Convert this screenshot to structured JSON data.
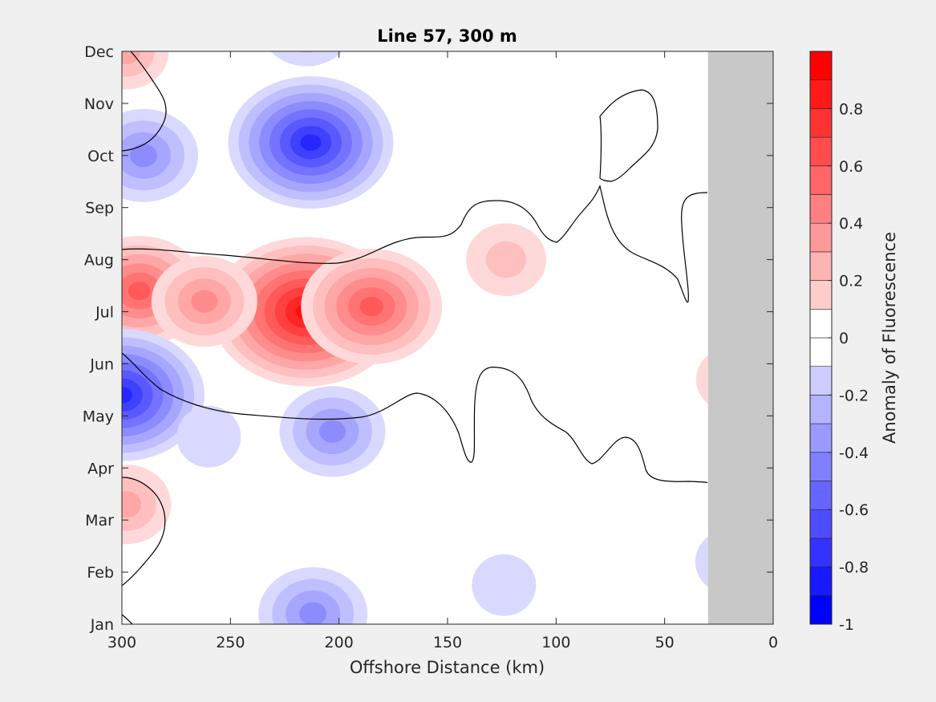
{
  "chart_data": {
    "type": "heatmap",
    "title": "Line 57, 300 m",
    "xlabel": "Offshore Distance (km)",
    "ylabel": "",
    "xlim": [
      300,
      0
    ],
    "x_reversed": true,
    "x_ticks": [
      300,
      250,
      200,
      150,
      100,
      50,
      0
    ],
    "y_ticks": [
      "Jan",
      "Feb",
      "Mar",
      "Apr",
      "May",
      "Jun",
      "Jul",
      "Aug",
      "Sep",
      "Oct",
      "Nov",
      "Dec"
    ],
    "colorbar": {
      "label": "Anomaly of Fluorescence",
      "range": [
        -1,
        1
      ],
      "tick_labels": [
        "0.8",
        "0.6",
        "0.4",
        "0.2",
        "0",
        "-0.2",
        "-0.4",
        "-0.6",
        "-0.8",
        "-1"
      ],
      "tick_values": [
        0.8,
        0.6,
        0.4,
        0.2,
        0,
        -0.2,
        -0.4,
        -0.6,
        -0.8,
        -1
      ],
      "levels": [
        -1,
        -0.9,
        -0.8,
        -0.7,
        -0.6,
        -0.5,
        -0.4,
        -0.3,
        -0.2,
        -0.1,
        0,
        0.1,
        0.2,
        0.3,
        0.4,
        0.5,
        0.6,
        0.7,
        0.8,
        0.9,
        1
      ],
      "colormap": "blue-white-red"
    },
    "no_data_region_km": [
      0,
      30
    ],
    "no_data_color": "#c8c8c8",
    "zero_contour_color": "#000000",
    "anomaly_features": [
      {
        "name": "summer positive anomaly",
        "distance_km": 215,
        "month": 6.0,
        "peak": 0.9
      },
      {
        "name": "summer positive anomaly west",
        "distance_km": 292,
        "month": 6.4,
        "peak": 0.55
      },
      {
        "name": "summer positive anomaly mid",
        "distance_km": 262,
        "month": 6.2,
        "peak": 0.38
      },
      {
        "name": "summer positive anomaly east",
        "distance_km": 185,
        "month": 6.1,
        "peak": 0.6
      },
      {
        "name": "offshore positive patch",
        "distance_km": 123,
        "month": 7.0,
        "peak": 0.22
      },
      {
        "name": "nearshore positive patch",
        "distance_km": 20,
        "month": 4.7,
        "peak": 0.14
      },
      {
        "name": "spring positive patch",
        "distance_km": 298,
        "month": 2.3,
        "peak": 0.28
      },
      {
        "name": "winter positive patch",
        "distance_km": 298,
        "month": 11.0,
        "peak": 0.25
      },
      {
        "name": "autumn negative anomaly",
        "distance_km": 213,
        "month": 9.25,
        "peak": -0.75
      },
      {
        "name": "autumn negative anomaly west",
        "distance_km": 290,
        "month": 9.0,
        "peak": -0.4
      },
      {
        "name": "late-year negative band",
        "distance_km": 215,
        "month": 11.5,
        "peak": -0.3
      },
      {
        "name": "spring negative anomaly",
        "distance_km": 300,
        "month": 4.4,
        "peak": -0.75
      },
      {
        "name": "spring negative anomaly offshore",
        "distance_km": 203,
        "month": 3.7,
        "peak": -0.38
      },
      {
        "name": "winter negative patch",
        "distance_km": 212,
        "month": 0.2,
        "peak": -0.4
      },
      {
        "name": "small negative patch 1",
        "distance_km": 260,
        "month": 3.6,
        "peak": -0.12
      },
      {
        "name": "small negative patch 2",
        "distance_km": 124,
        "month": 0.75,
        "peak": -0.12
      },
      {
        "name": "small negative patch 3",
        "distance_km": 20,
        "month": 1.2,
        "peak": -0.15
      }
    ]
  }
}
